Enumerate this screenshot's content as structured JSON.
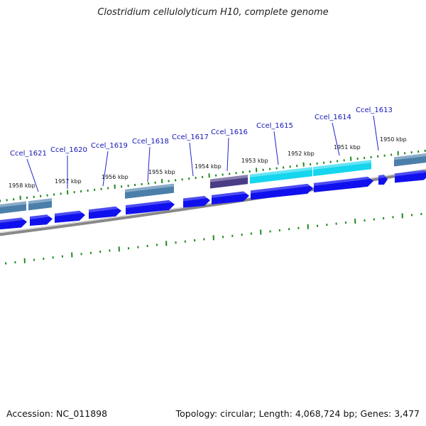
{
  "title": "Clostridium cellulolyticum H10, complete genome",
  "footer": {
    "accession": "Accession: NC_011898",
    "summary": "Topology: circular; Length: 4,068,724 bp; Genes: 3,477"
  },
  "colors": {
    "cds": "#1010ee",
    "gene_steel": "#4b7faa",
    "gene_purple": "#4b3c86",
    "gene_cyan": "#15d6ee",
    "gene_label": "#1515b8",
    "tick": "#1f8a1f",
    "backbone": "#888888"
  },
  "scale_labels": [
    "1958 kbp",
    "1957 kbp",
    "1956 kbp",
    "1955 kbp",
    "1954 kbp",
    "1953 kbp",
    "1952 kbp",
    "1951 kbp",
    "1950 kbp"
  ],
  "gene_labels": [
    "Ccel_1621",
    "Ccel_1620",
    "Ccel_1619",
    "Ccel_1618",
    "Ccel_1617",
    "Ccel_1616",
    "Ccel_1615",
    "Ccel_1614",
    "Ccel_1613"
  ]
}
